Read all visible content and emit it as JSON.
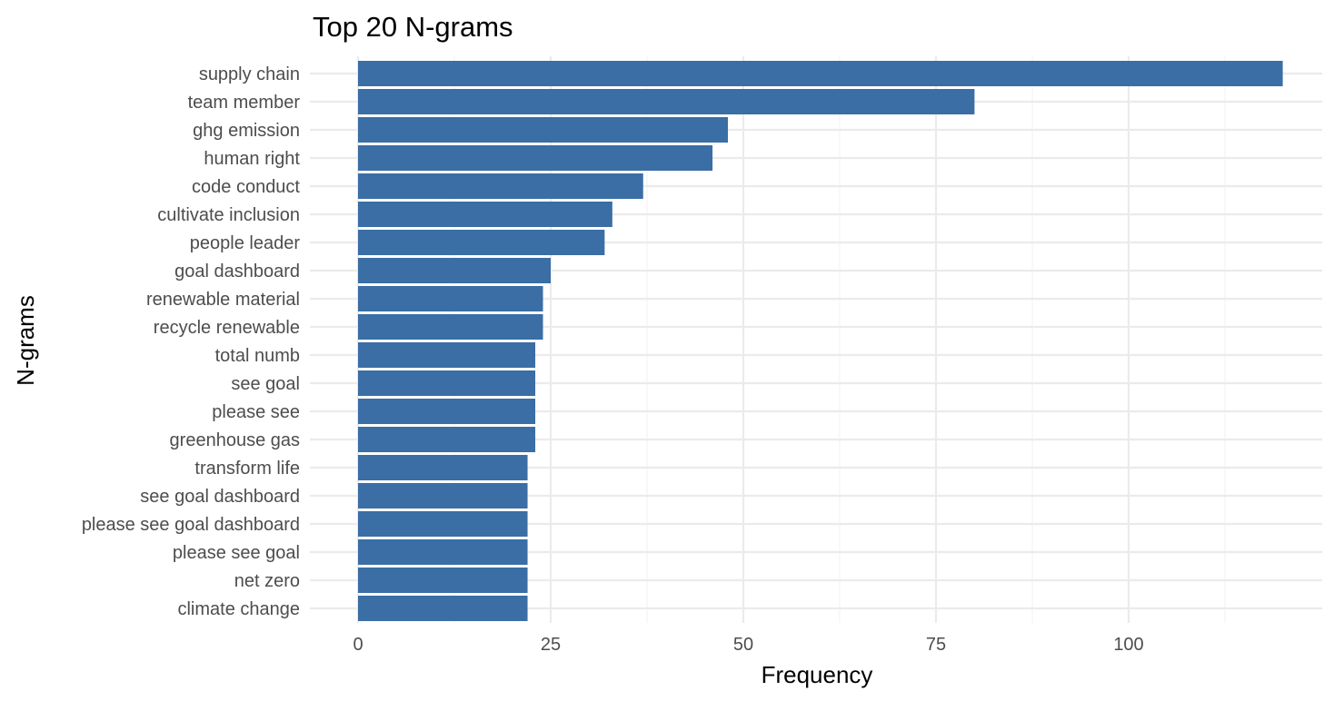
{
  "chart_data": {
    "type": "bar",
    "orientation": "horizontal",
    "title": "Top 20 N-grams",
    "xlabel": "Frequency",
    "ylabel": "N-grams",
    "categories": [
      "supply chain",
      "team member",
      "ghg emission",
      "human right",
      "code conduct",
      "cultivate inclusion",
      "people leader",
      "goal dashboard",
      "renewable material",
      "recycle renewable",
      "total numb",
      "see goal",
      "please see",
      "greenhouse gas",
      "transform life",
      "see goal dashboard",
      "please see goal dashboard",
      "please see goal",
      "net zero",
      "climate change"
    ],
    "values": [
      120,
      80,
      48,
      46,
      37,
      33,
      32,
      25,
      24,
      24,
      23,
      23,
      23,
      23,
      22,
      22,
      22,
      22,
      22,
      22
    ],
    "xlim": [
      0,
      125
    ],
    "xticks": [
      0,
      25,
      50,
      75,
      100
    ],
    "xtick_labels": [
      "0",
      "25",
      "50",
      "75",
      "100"
    ],
    "grid": true,
    "legend": "none",
    "bar_color": "#3a6ea5"
  }
}
